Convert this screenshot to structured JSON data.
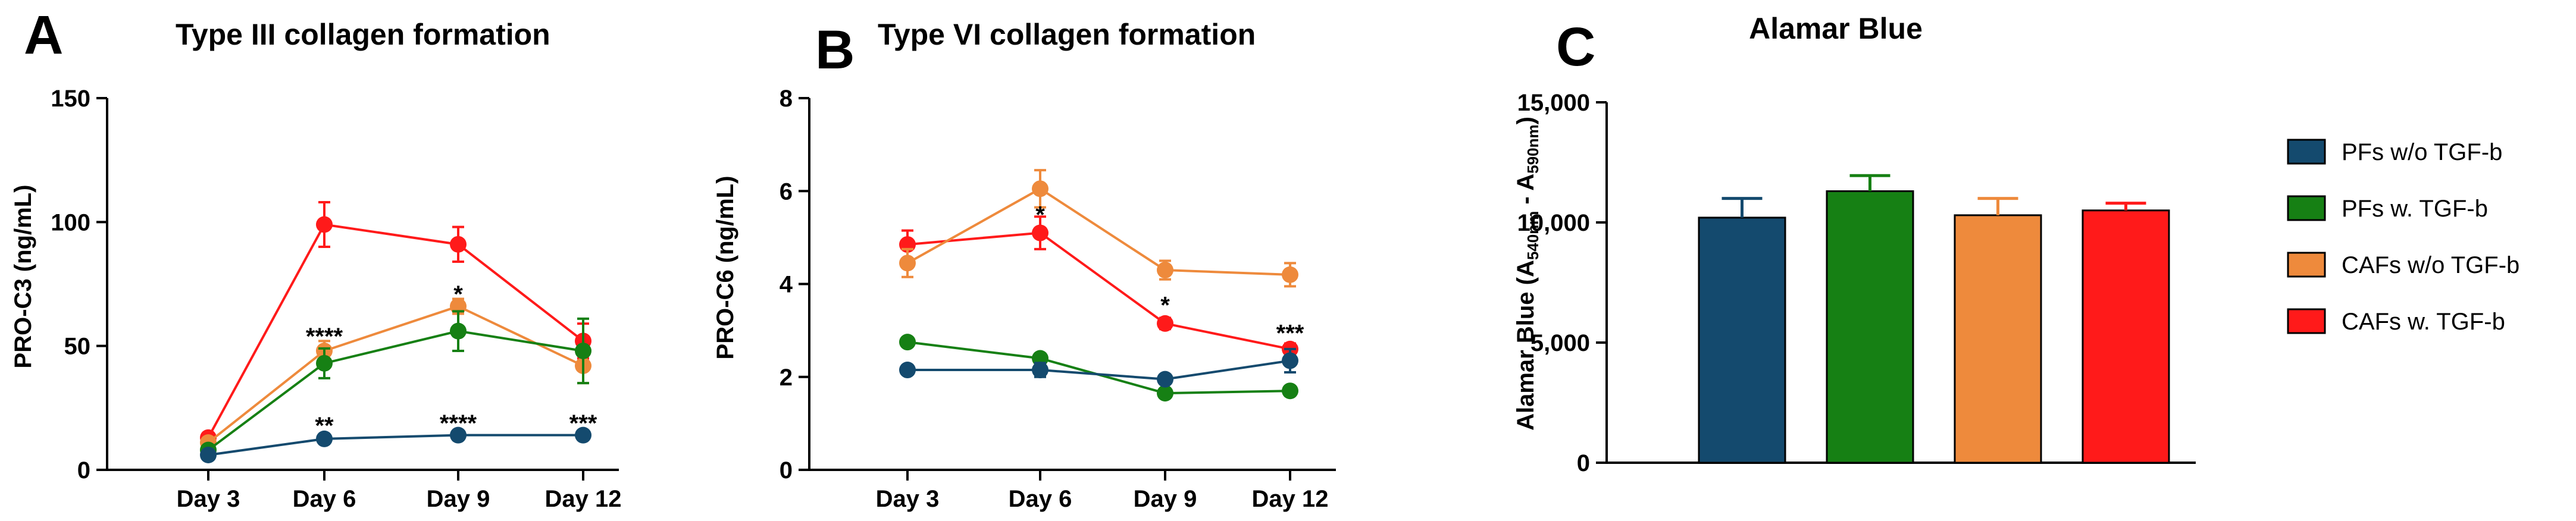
{
  "colors": {
    "PFs w/o TGF-b": "#144A6E",
    "PFs w. TGF-b": "#168014",
    "CAFs w/o TGF-b": "#EE8A3C",
    "CAFs w. TGF-b": "#FF1A1A"
  },
  "chart_data": [
    {
      "panel": "A",
      "type": "line",
      "title": "Type III collagen formation",
      "xlabel": "",
      "ylabel": "PRO-C3 (ng/mL)",
      "categories": [
        "Day 3",
        "Day 6",
        "Day 9",
        "Day 12"
      ],
      "ylim": [
        0,
        150
      ],
      "yticks": [
        0,
        50,
        100,
        150
      ],
      "ytick_labels": [
        "0",
        "50",
        "100",
        "150"
      ],
      "series": [
        {
          "name": "PFs w/o TGF-b",
          "values": [
            6,
            12.5,
            14,
            14
          ],
          "errors": [
            1,
            1,
            1,
            1
          ]
        },
        {
          "name": "PFs w. TGF-b",
          "values": [
            8,
            43,
            56,
            48
          ],
          "errors": [
            1,
            6,
            8,
            13
          ]
        },
        {
          "name": "CAFs w/o TGF-b",
          "values": [
            11,
            48,
            66,
            42
          ],
          "errors": [
            1,
            4,
            3,
            7
          ]
        },
        {
          "name": "CAFs w. TGF-b",
          "values": [
            13,
            99,
            91,
            52
          ],
          "errors": [
            2,
            9,
            7,
            7
          ]
        }
      ],
      "annotations": [
        {
          "text": "****",
          "x": "Day 6",
          "y": 54
        },
        {
          "text": "*",
          "x": "Day 9",
          "y": 71
        },
        {
          "text": "**",
          "x": "Day 6",
          "y": 18
        },
        {
          "text": "****",
          "x": "Day 9",
          "y": 19
        },
        {
          "text": "***",
          "x": "Day 12",
          "y": 19
        }
      ]
    },
    {
      "panel": "B",
      "type": "line",
      "title": "Type VI collagen formation",
      "xlabel": "",
      "ylabel": "PRO-C6  (ng/mL)",
      "categories": [
        "Day 3",
        "Day 6",
        "Day 9",
        "Day 12"
      ],
      "ylim": [
        0,
        8
      ],
      "yticks": [
        0,
        2,
        4,
        6,
        8
      ],
      "ytick_labels": [
        "0",
        "2",
        "4",
        "6",
        "8"
      ],
      "series": [
        {
          "name": "PFs w/o TGF-b",
          "values": [
            2.15,
            2.15,
            1.95,
            2.35
          ],
          "errors": [
            0.08,
            0.15,
            0.1,
            0.25
          ]
        },
        {
          "name": "PFs w. TGF-b",
          "values": [
            2.75,
            2.4,
            1.65,
            1.7
          ],
          "errors": [
            0.08,
            0.08,
            0.08,
            0.08
          ]
        },
        {
          "name": "CAFs w/o TGF-b",
          "values": [
            4.45,
            6.05,
            4.3,
            4.2
          ],
          "errors": [
            0.3,
            0.4,
            0.2,
            0.25
          ]
        },
        {
          "name": "CAFs w. TGF-b",
          "values": [
            4.85,
            5.1,
            3.15,
            2.6
          ],
          "errors": [
            0.3,
            0.35,
            0.12,
            0.12
          ]
        }
      ],
      "annotations": [
        {
          "text": "*",
          "x": "Day 6",
          "y": 5.5
        },
        {
          "text": "*",
          "x": "Day 9",
          "y": 3.55
        },
        {
          "text": "***",
          "x": "Day 12",
          "y": 2.95
        }
      ]
    },
    {
      "panel": "C",
      "type": "bar",
      "title": "Alamar Blue",
      "xlabel": "",
      "ylabel_main": "Alamar Blue (A",
      "ylabel_sub1": "540nm",
      "ylabel_mid": " - A",
      "ylabel_sub2": "590nm",
      "ylabel_end": ")",
      "categories": [
        "PFs w/o TGF-b",
        "PFs w. TGF-b",
        "CAFs w/o TGF-b",
        "CAFs w. TGF-b"
      ],
      "values": [
        10200,
        11300,
        10300,
        10500
      ],
      "errors": [
        800,
        650,
        700,
        300
      ],
      "ylim": [
        0,
        15000
      ],
      "yticks": [
        0,
        5000,
        10000,
        15000
      ],
      "ytick_labels": [
        "0",
        "5,000",
        "10,000",
        "15,000"
      ]
    }
  ],
  "legend": {
    "items": [
      "PFs w/o TGF-b",
      "PFs w. TGF-b",
      "CAFs w/o TGF-b",
      "CAFs w. TGF-b"
    ]
  }
}
